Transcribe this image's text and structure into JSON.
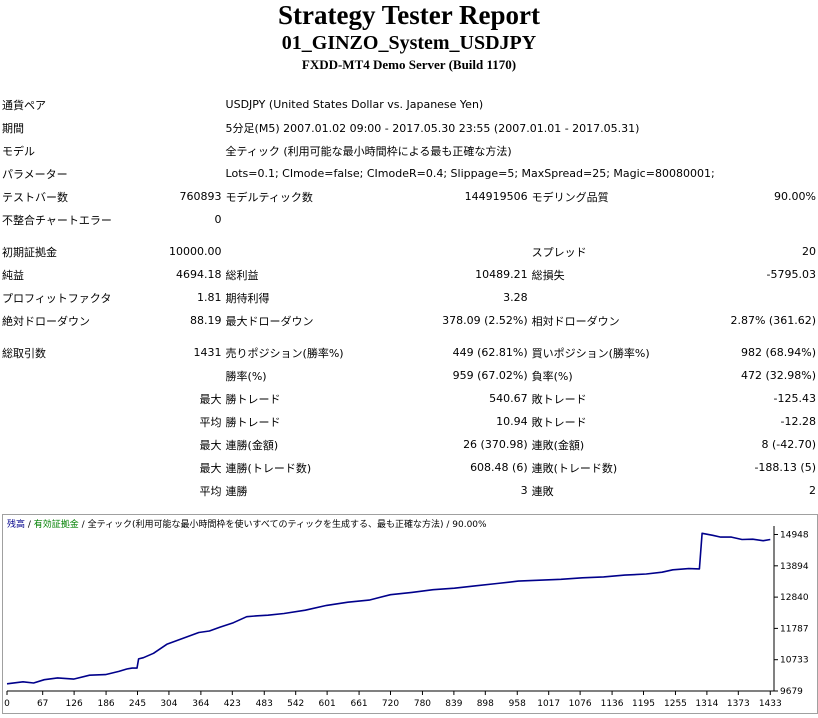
{
  "header": {
    "title": "Strategy Tester Report",
    "subtitle": "01_GINZO_System_USDJPY",
    "server": "FXDD-MT4 Demo Server (Build 1170)"
  },
  "info": {
    "pair_label": "通貨ペア",
    "pair_value": "USDJPY (United States Dollar vs. Japanese Yen)",
    "period_label": "期間",
    "period_value": "5分足(M5) 2007.01.02 09:00 - 2017.05.30 23:55 (2007.01.01 - 2017.05.31)",
    "model_label": "モデル",
    "model_value": "全ティック (利用可能な最小時間枠による最も正確な方法)",
    "params_label": "パラメーター",
    "params_value": "Lots=0.1; CImode=false; CImodeR=0.4; Slippage=5; MaxSpread=25; Magic=80080001;"
  },
  "stats": {
    "bars_label": "テストバー数",
    "bars_value": "760893",
    "model_ticks_label": "モデルティック数",
    "model_ticks_value": "144919506",
    "model_quality_label": "モデリング品質",
    "model_quality_value": "90.00%",
    "mismatch_label": "不整合チャートエラー",
    "mismatch_value": "0",
    "initial_deposit_label": "初期証拠金",
    "initial_deposit_value": "10000.00",
    "spread_label": "スプレッド",
    "spread_value": "20",
    "net_profit_label": "純益",
    "net_profit_value": "4694.18",
    "gross_profit_label": "総利益",
    "gross_profit_value": "10489.21",
    "gross_loss_label": "総損失",
    "gross_loss_value": "-5795.03",
    "profit_factor_label": "プロフィットファクタ",
    "profit_factor_value": "1.81",
    "expected_payoff_label": "期待利得",
    "expected_payoff_value": "3.28",
    "abs_dd_label": "絶対ドローダウン",
    "abs_dd_value": "88.19",
    "max_dd_label": "最大ドローダウン",
    "max_dd_value": "378.09 (2.52%)",
    "rel_dd_label": "相対ドローダウン",
    "rel_dd_value": "2.87% (361.62)",
    "total_trades_label": "総取引数",
    "total_trades_value": "1431",
    "short_label": "売りポジション(勝率%)",
    "short_value": "449 (62.81%)",
    "long_label": "買いポジション(勝率%)",
    "long_value": "982 (68.94%)",
    "win_rate_label": "勝率(%)",
    "win_rate_value": "959 (67.02%)",
    "loss_rate_label": "負率(%)",
    "loss_rate_value": "472 (32.98%)",
    "max_label": "最大",
    "largest_win_label": "勝トレード",
    "largest_win_value": "540.67",
    "largest_loss_label": "敗トレード",
    "largest_loss_value": "-125.43",
    "avg_label": "平均",
    "avg_win_label": "勝トレード",
    "avg_win_value": "10.94",
    "avg_loss_label": "敗トレード",
    "avg_loss_value": "-12.28",
    "max_cons_wins_label": "連勝(金額)",
    "max_cons_wins_value": "26 (370.98)",
    "max_cons_losses_label": "連敗(金額)",
    "max_cons_losses_value": "8 (-42.70)",
    "max_cons_profit_label": "連勝(トレード数)",
    "max_cons_profit_value": "608.48 (6)",
    "max_cons_loss_label": "連敗(トレード数)",
    "max_cons_loss_value": "-188.13 (5)",
    "avg_cons_wins_label": "連勝",
    "avg_cons_wins_value": "3",
    "avg_cons_losses_label": "連敗",
    "avg_cons_losses_value": "2"
  },
  "legend": {
    "balance": "残高",
    "separator1": " / ",
    "equity": "有効証拠金",
    "separator2": " / ",
    "rest": "全ティック(利用可能な最小時間枠を使いすべてのティックを生成する、最も正確な方法) / 90.00%"
  },
  "chart_data": {
    "type": "line",
    "title": "",
    "xlabel": "",
    "ylabel": "",
    "x_ticks": [
      0,
      67,
      126,
      186,
      245,
      304,
      364,
      423,
      483,
      542,
      601,
      661,
      720,
      780,
      839,
      898,
      958,
      1017,
      1076,
      1136,
      1195,
      1255,
      1314,
      1373,
      1433
    ],
    "y_ticks": [
      9679,
      10733,
      11787,
      12840,
      13894,
      14948
    ],
    "xlim": [
      0,
      1440
    ],
    "ylim": [
      9679,
      15100
    ],
    "grid": false,
    "colors": {
      "balance": "#00008b",
      "equity": "#008000"
    },
    "series": [
      {
        "name": "残高",
        "x": [
          0,
          30,
          50,
          70,
          95,
          125,
          155,
          185,
          210,
          225,
          235,
          244,
          247,
          256,
          275,
          300,
          330,
          360,
          380,
          400,
          425,
          450,
          470,
          490,
          520,
          560,
          600,
          640,
          680,
          720,
          760,
          800,
          840,
          880,
          920,
          960,
          1000,
          1040,
          1080,
          1120,
          1160,
          1200,
          1230,
          1250,
          1280,
          1300,
          1305,
          1325,
          1340,
          1360,
          1380,
          1400,
          1420,
          1433
        ],
        "y": [
          9920,
          9990,
          9950,
          10060,
          10120,
          10080,
          10210,
          10230,
          10340,
          10420,
          10450,
          10450,
          10760,
          10800,
          10950,
          11250,
          11450,
          11650,
          11700,
          11830,
          11980,
          12180,
          12210,
          12230,
          12290,
          12400,
          12560,
          12670,
          12740,
          12920,
          13000,
          13090,
          13140,
          13220,
          13300,
          13380,
          13410,
          13440,
          13490,
          13520,
          13580,
          13620,
          13680,
          13760,
          13800,
          13790,
          14990,
          14920,
          14860,
          14860,
          14780,
          14790,
          14740,
          14780
        ]
      }
    ]
  }
}
